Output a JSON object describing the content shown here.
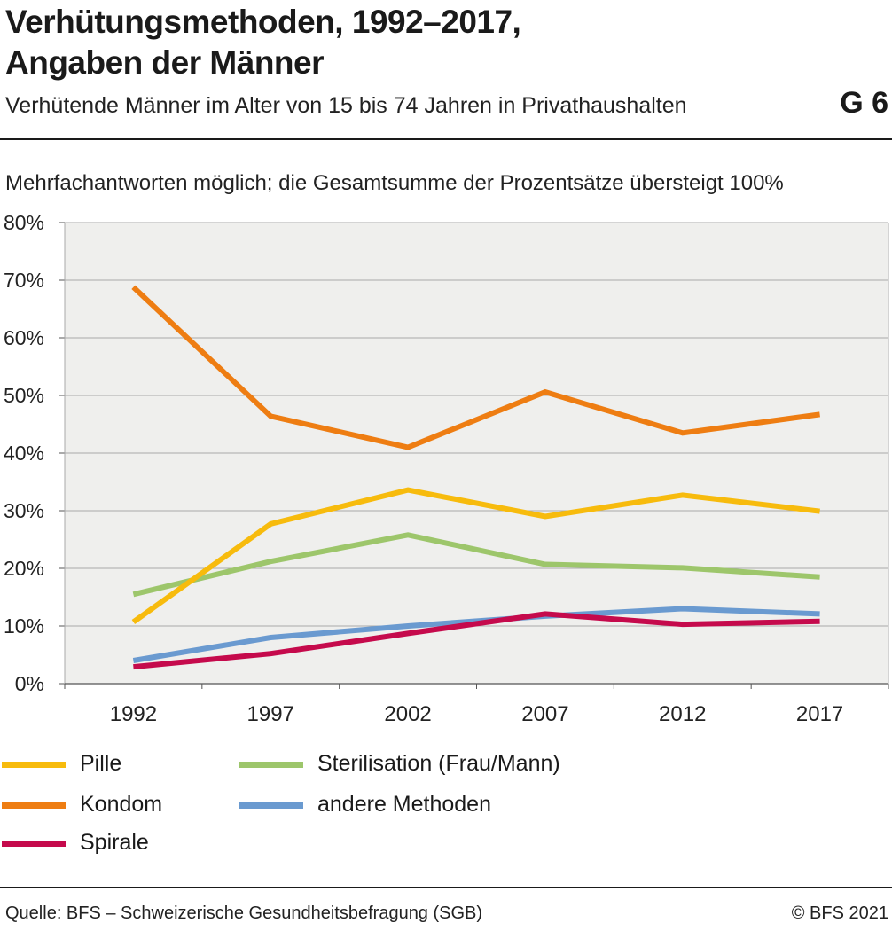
{
  "header": {
    "title_line1": "Verhütungsmethoden, 1992–2017,",
    "title_line2": "Angaben der Männer",
    "subtitle": "Verhütende Männer im Alter von 15 bis 74 Jahren in Privathaushalten",
    "graphic_number": "G 6"
  },
  "note": "Mehrfachantworten möglich; die Gesamtsumme der Prozentsätze übersteigt 100%",
  "chart_data": {
    "type": "line",
    "x": [
      "1992",
      "1997",
      "2002",
      "2007",
      "2012",
      "2017"
    ],
    "ylim": [
      0,
      80
    ],
    "yticks": [
      0,
      10,
      20,
      30,
      40,
      50,
      60,
      70,
      80
    ],
    "ytick_labels": [
      "0%",
      "10%",
      "20%",
      "30%",
      "40%",
      "50%",
      "60%",
      "70%",
      "80%"
    ],
    "grid": true,
    "plot_background": "#efefed",
    "series": [
      {
        "name": "Pille",
        "color": "#f7bb0d",
        "values": [
          10.7,
          27.7,
          33.6,
          29.0,
          32.7,
          29.9
        ]
      },
      {
        "name": "Kondom",
        "color": "#ee7d12",
        "values": [
          68.8,
          46.4,
          41.0,
          50.6,
          43.5,
          46.7
        ]
      },
      {
        "name": "Spirale",
        "color": "#c50a4c",
        "values": [
          2.9,
          5.2,
          8.7,
          12.1,
          10.3,
          10.8
        ]
      },
      {
        "name": "Sterilisation (Frau/Mann)",
        "color": "#9dc66b",
        "values": [
          15.5,
          21.2,
          25.8,
          20.7,
          20.1,
          18.5
        ]
      },
      {
        "name": "andere Methoden",
        "color": "#6a9ad0",
        "values": [
          4.0,
          8.0,
          10.0,
          11.7,
          13.0,
          12.1
        ]
      }
    ],
    "legend_position": "bottom"
  },
  "footer": {
    "source": "Quelle: BFS – Schweizerische Gesundheitsbefragung (SGB)",
    "copyright": "© BFS 2021"
  }
}
